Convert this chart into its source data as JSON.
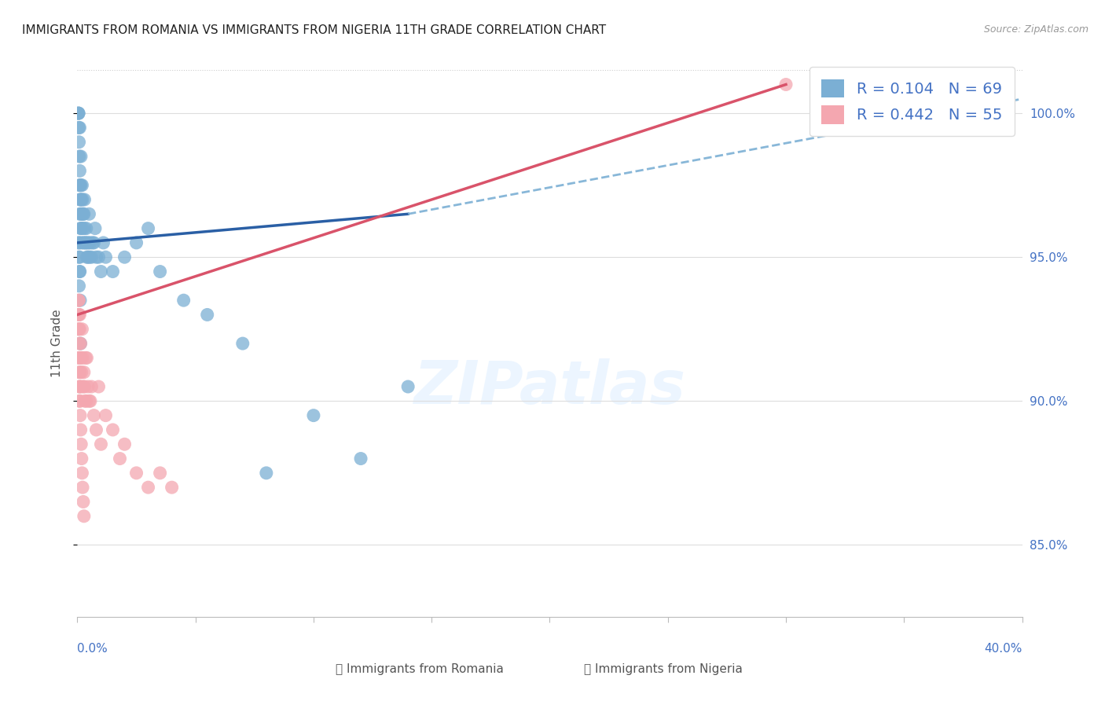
{
  "title": "IMMIGRANTS FROM ROMANIA VS IMMIGRANTS FROM NIGERIA 11TH GRADE CORRELATION CHART",
  "source": "Source: ZipAtlas.com",
  "ylabel": "11th Grade",
  "romania_color": "#7bafd4",
  "nigeria_color": "#f4a7b0",
  "trend_romania_color": "#2a5fa5",
  "trend_nigeria_color": "#d9536a",
  "dashed_color": "#7bafd4",
  "xlim": [
    0.0,
    40.0
  ],
  "ylim": [
    82.5,
    101.5
  ],
  "yticks": [
    85.0,
    90.0,
    95.0,
    100.0
  ],
  "romania_x": [
    0.05,
    0.05,
    0.05,
    0.06,
    0.07,
    0.08,
    0.09,
    0.1,
    0.1,
    0.1,
    0.1,
    0.12,
    0.13,
    0.14,
    0.15,
    0.15,
    0.15,
    0.16,
    0.17,
    0.18,
    0.2,
    0.2,
    0.22,
    0.22,
    0.25,
    0.25,
    0.28,
    0.3,
    0.3,
    0.32,
    0.35,
    0.38,
    0.4,
    0.42,
    0.45,
    0.48,
    0.5,
    0.52,
    0.55,
    0.6,
    0.65,
    0.7,
    0.75,
    0.8,
    0.9,
    1.0,
    1.1,
    1.2,
    1.5,
    2.0,
    2.5,
    3.0,
    3.5,
    4.5,
    5.5,
    7.0,
    8.0,
    10.0,
    12.0,
    14.0,
    0.05,
    0.06,
    0.07,
    0.08,
    0.09,
    0.1,
    0.11,
    0.12,
    0.13
  ],
  "romania_y": [
    100.0,
    100.0,
    100.0,
    99.5,
    99.0,
    98.5,
    97.5,
    99.5,
    98.0,
    97.0,
    96.5,
    97.5,
    96.0,
    97.0,
    98.5,
    97.5,
    96.5,
    96.0,
    97.0,
    95.5,
    97.5,
    96.5,
    97.0,
    96.0,
    96.5,
    95.5,
    96.5,
    97.0,
    96.0,
    95.5,
    95.5,
    96.0,
    95.0,
    95.5,
    95.0,
    95.5,
    96.5,
    95.0,
    95.5,
    95.0,
    95.5,
    95.5,
    96.0,
    95.0,
    95.0,
    94.5,
    95.5,
    95.0,
    94.5,
    95.0,
    95.5,
    96.0,
    94.5,
    93.5,
    93.0,
    92.0,
    87.5,
    89.5,
    88.0,
    90.5,
    95.5,
    95.0,
    94.0,
    95.5,
    94.5,
    95.0,
    94.5,
    93.5,
    92.0
  ],
  "nigeria_x": [
    0.04,
    0.05,
    0.05,
    0.06,
    0.07,
    0.08,
    0.09,
    0.1,
    0.1,
    0.12,
    0.14,
    0.15,
    0.16,
    0.18,
    0.2,
    0.22,
    0.25,
    0.28,
    0.3,
    0.32,
    0.35,
    0.38,
    0.4,
    0.45,
    0.5,
    0.55,
    0.6,
    0.7,
    0.8,
    0.9,
    1.0,
    1.2,
    1.5,
    1.8,
    2.0,
    2.5,
    3.0,
    3.5,
    4.0,
    0.05,
    0.06,
    0.07,
    0.08,
    0.09,
    0.1,
    0.11,
    0.12,
    0.14,
    0.16,
    0.18,
    0.2,
    0.22,
    0.25,
    0.28,
    30.0
  ],
  "nigeria_y": [
    93.5,
    93.0,
    92.5,
    93.0,
    93.5,
    92.0,
    91.5,
    93.0,
    92.5,
    91.0,
    92.0,
    90.5,
    91.5,
    91.0,
    92.5,
    91.5,
    90.5,
    91.0,
    90.5,
    90.0,
    91.5,
    90.0,
    91.5,
    90.5,
    90.0,
    90.0,
    90.5,
    89.5,
    89.0,
    90.5,
    88.5,
    89.5,
    89.0,
    88.0,
    88.5,
    87.5,
    87.0,
    87.5,
    87.0,
    92.5,
    91.5,
    91.0,
    90.5,
    90.0,
    90.5,
    90.0,
    89.5,
    89.0,
    88.5,
    88.0,
    87.5,
    87.0,
    86.5,
    86.0,
    101.0
  ],
  "rom_trend_x0": 0.0,
  "rom_trend_x1": 14.0,
  "rom_trend_y0": 95.5,
  "rom_trend_y1": 96.5,
  "nig_trend_x0": 0.0,
  "nig_trend_x1": 30.0,
  "nig_trend_y0": 93.0,
  "nig_trend_y1": 101.0,
  "dash_x0": 14.0,
  "dash_x1": 40.0,
  "dash_y0": 96.5,
  "dash_y1": 100.5
}
